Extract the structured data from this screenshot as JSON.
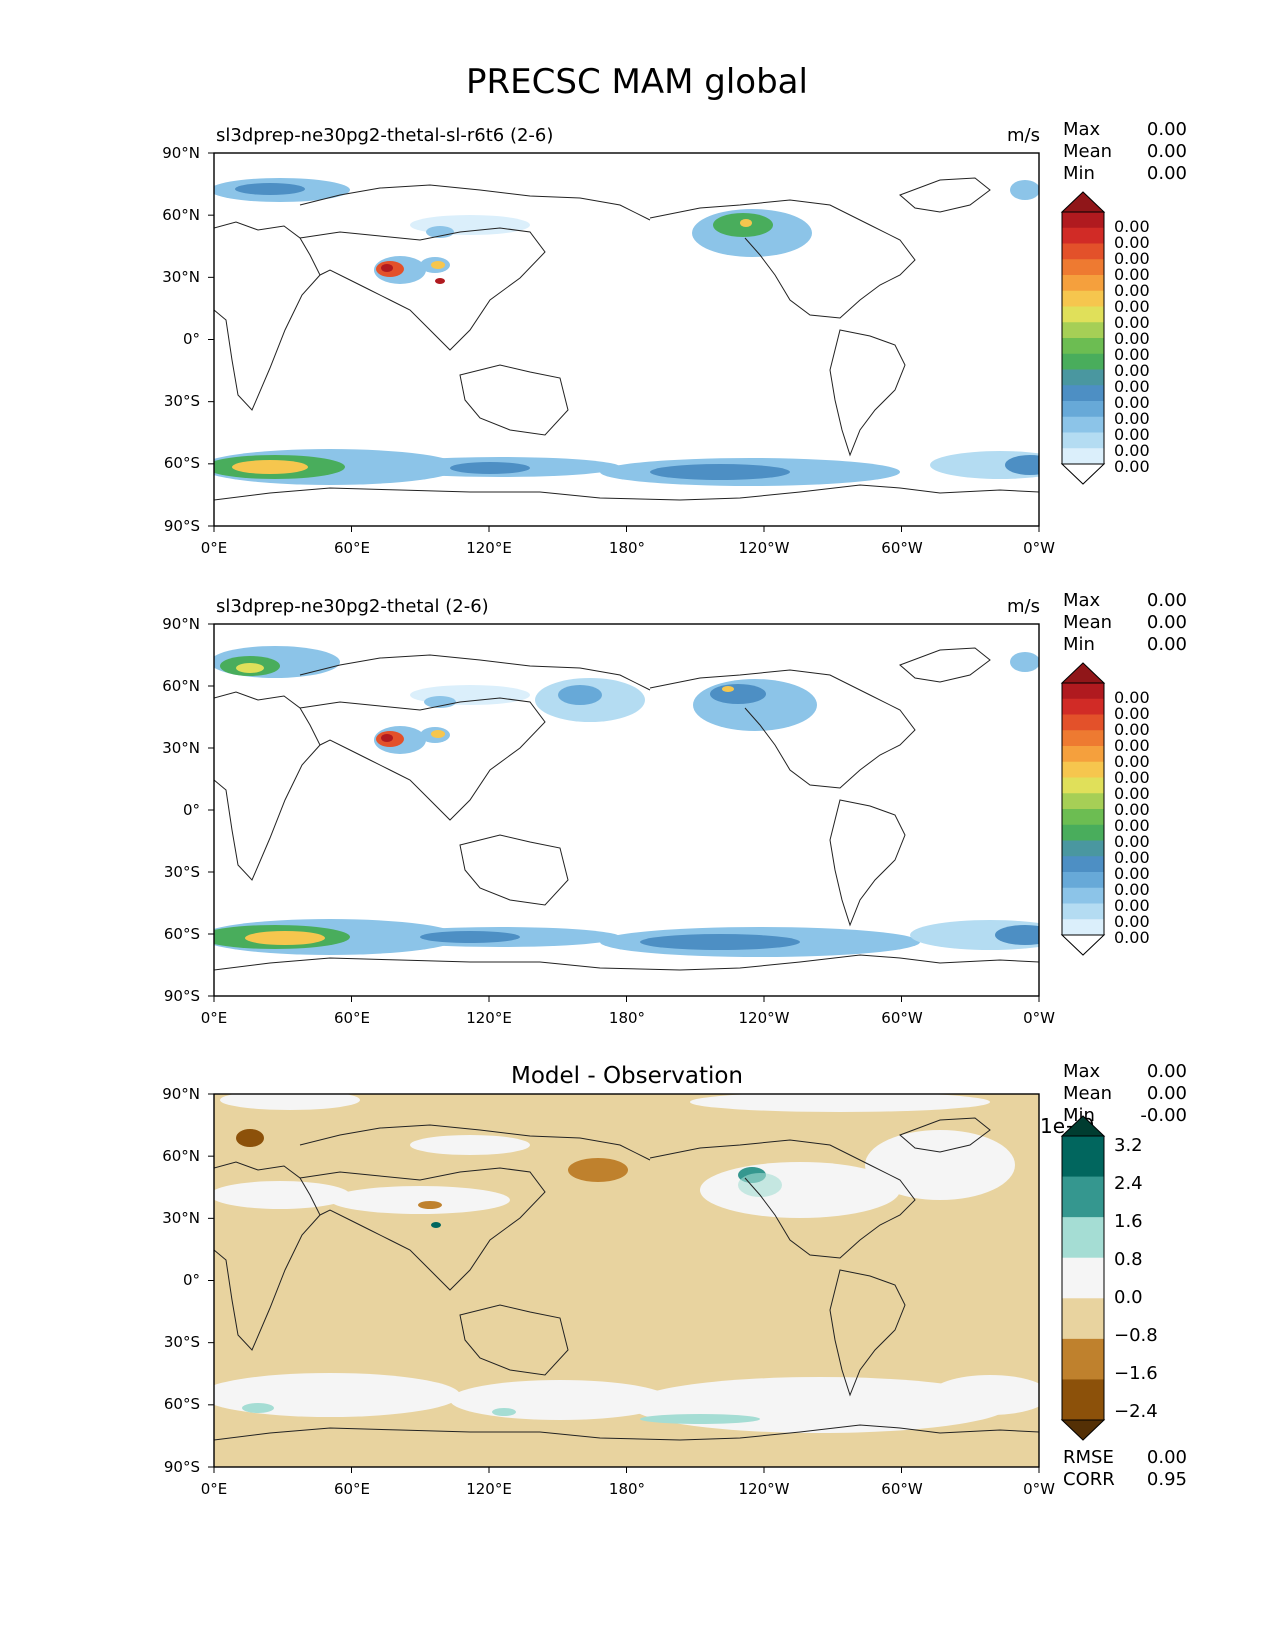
{
  "figure_title": "PRECSC MAM global",
  "stat_labels": {
    "max": "Max",
    "mean": "Mean",
    "min": "Min",
    "rmse": "RMSE",
    "corr": "CORR"
  },
  "colors": {
    "land_outline": "#222222",
    "test_ramp": [
      "#ffffff",
      "#dbeffb",
      "#b4dcf2",
      "#8cc4e8",
      "#67a9d8",
      "#4d8fc4",
      "#4a97a0",
      "#49ad5c",
      "#6cbd52",
      "#a6cf56",
      "#e0e05a",
      "#f6c64e",
      "#f5a03d",
      "#ee7a31",
      "#e3512a",
      "#d12b26",
      "#b01a1f",
      "#901619"
    ],
    "diff_ramp": [
      "#543005",
      "#8c510a",
      "#bf812d",
      "#e8d39f",
      "#f5f5f5",
      "#a5ddd4",
      "#35978f",
      "#01665e",
      "#003c30"
    ]
  },
  "chart_data": [
    {
      "type": "heatmap",
      "panel": "test",
      "title": "sl3dprep-ne30pg2-thetal-sl-r6t6 (2-6)",
      "units": "m/s",
      "stats": {
        "max": "0.00",
        "mean": "0.00",
        "min": "0.00"
      },
      "colorbar_ticks": [
        "0.00",
        "0.00",
        "0.00",
        "0.00",
        "0.00",
        "0.00",
        "0.00",
        "0.00",
        "0.00",
        "0.00",
        "0.00",
        "0.00",
        "0.00",
        "0.00",
        "0.00",
        "0.00"
      ],
      "colorbar_extend": "both",
      "x_ticks": [
        "0°E",
        "60°E",
        "120°E",
        "180°",
        "120°W",
        "60°W",
        "0°W"
      ],
      "y_ticks": [
        "90°N",
        "60°N",
        "30°N",
        "0°",
        "30°S",
        "60°S",
        "90°S"
      ],
      "xlim": [
        0,
        360
      ],
      "ylim": [
        -90,
        90
      ]
    },
    {
      "type": "heatmap",
      "panel": "reference",
      "title": "sl3dprep-ne30pg2-thetal (2-6)",
      "units": "m/s",
      "stats": {
        "max": "0.00",
        "mean": "0.00",
        "min": "0.00"
      },
      "colorbar_ticks": [
        "0.00",
        "0.00",
        "0.00",
        "0.00",
        "0.00",
        "0.00",
        "0.00",
        "0.00",
        "0.00",
        "0.00",
        "0.00",
        "0.00",
        "0.00",
        "0.00",
        "0.00",
        "0.00"
      ],
      "colorbar_extend": "both",
      "x_ticks": [
        "0°E",
        "60°E",
        "120°E",
        "180°",
        "120°W",
        "60°W",
        "0°W"
      ],
      "y_ticks": [
        "90°N",
        "60°N",
        "30°N",
        "0°",
        "30°S",
        "60°S",
        "90°S"
      ],
      "xlim": [
        0,
        360
      ],
      "ylim": [
        -90,
        90
      ]
    },
    {
      "type": "heatmap",
      "panel": "difference",
      "title": "Model - Observation",
      "stats": {
        "max": "0.00",
        "mean": "0.00",
        "min": "-0.00"
      },
      "metrics": {
        "rmse": "0.00",
        "corr": "0.95"
      },
      "colorbar_offset": "1e−9",
      "colorbar_ticks": [
        "3.2",
        "2.4",
        "1.6",
        "0.8",
        "0.0",
        "−0.8",
        "−1.6",
        "−2.4"
      ],
      "colorbar_extend": "both",
      "x_ticks": [
        "0°E",
        "60°E",
        "120°E",
        "180°",
        "120°W",
        "60°W",
        "0°W"
      ],
      "y_ticks": [
        "90°N",
        "60°N",
        "30°N",
        "0°",
        "30°S",
        "60°S",
        "90°S"
      ],
      "xlim": [
        0,
        360
      ],
      "ylim": [
        -90,
        90
      ]
    }
  ]
}
